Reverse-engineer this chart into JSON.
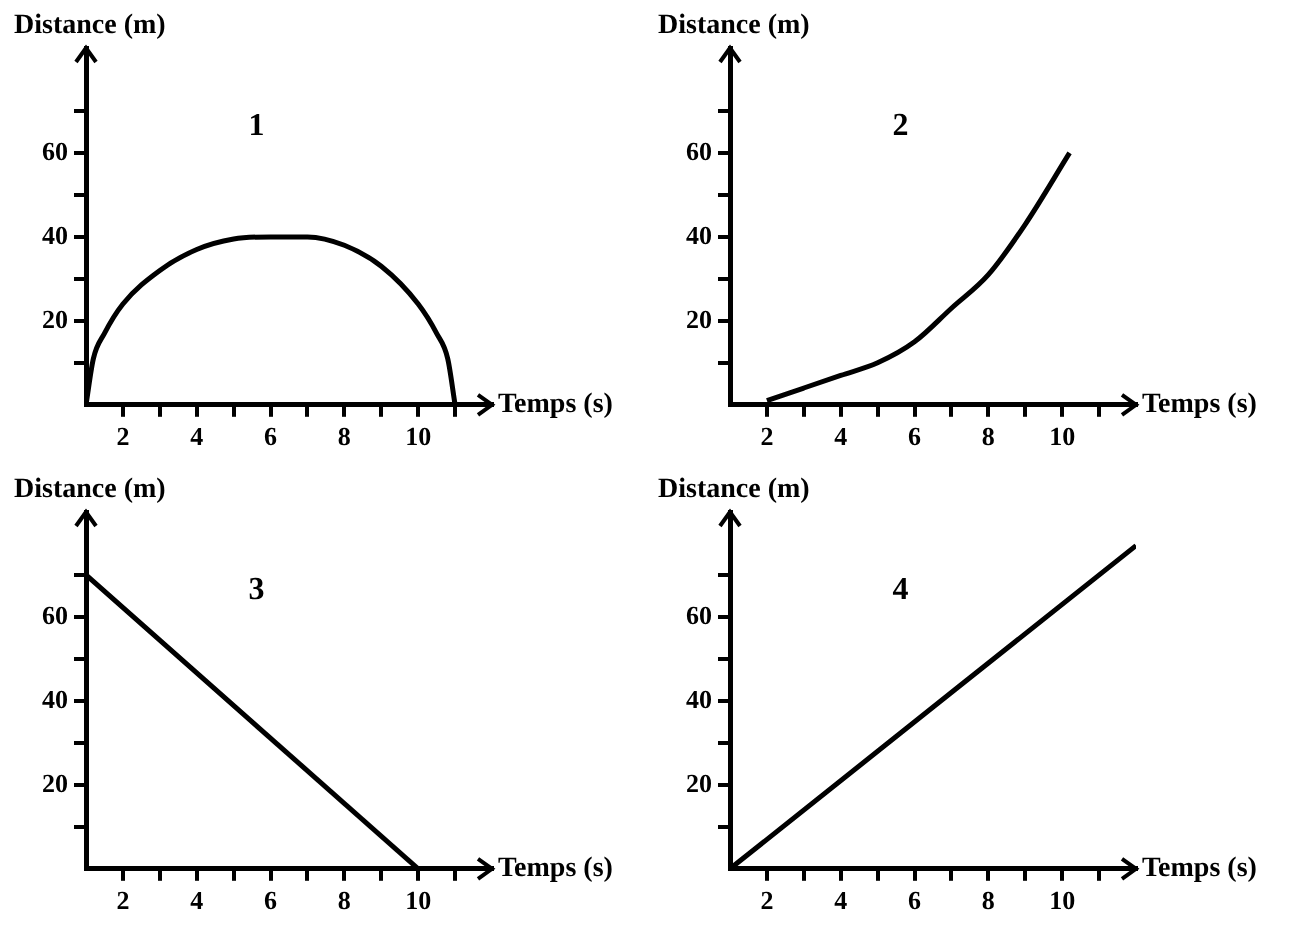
{
  "chart_data": [
    {
      "type": "line",
      "xlabel": "Temps (s)",
      "ylabel": "Distance (m)",
      "annotations": [
        "1"
      ],
      "xlim": [
        1,
        12
      ],
      "ylim": [
        0,
        85
      ],
      "xticks": [
        2,
        {
          "value": 3,
          "label": null
        },
        4,
        {
          "value": 5,
          "label": null
        },
        6,
        {
          "value": 7,
          "label": null
        },
        8,
        {
          "value": 9,
          "label": null
        },
        10,
        {
          "value": 11,
          "label": null
        }
      ],
      "yticks": [
        {
          "value": 10,
          "label": null
        },
        20,
        {
          "value": 30,
          "label": null
        },
        40,
        {
          "value": 50,
          "label": null
        },
        60,
        {
          "value": 70,
          "label": null
        }
      ],
      "series": [
        {
          "color": "#000000",
          "x": [
            1,
            1.2,
            1.5,
            2,
            3,
            4,
            5,
            6,
            7,
            8,
            9,
            10,
            10.5,
            10.8,
            11
          ],
          "values": [
            0,
            11,
            17,
            24,
            32,
            37,
            39.5,
            40,
            40,
            38,
            33,
            24,
            17,
            11,
            0
          ]
        }
      ],
      "grid": false,
      "legend": false,
      "marker": "none",
      "line_style": "solid"
    },
    {
      "type": "line",
      "xlabel": "Temps (s)",
      "ylabel": "Distance (m)",
      "annotations": [
        "2"
      ],
      "xlim": [
        1,
        12
      ],
      "ylim": [
        0,
        85
      ],
      "xticks": [
        2,
        {
          "value": 3,
          "label": null
        },
        4,
        {
          "value": 5,
          "label": null
        },
        6,
        {
          "value": 7,
          "label": null
        },
        8,
        {
          "value": 9,
          "label": null
        },
        10,
        {
          "value": 11,
          "label": null
        }
      ],
      "yticks": [
        {
          "value": 10,
          "label": null
        },
        20,
        {
          "value": 30,
          "label": null
        },
        40,
        {
          "value": 50,
          "label": null
        },
        60,
        {
          "value": 70,
          "label": null
        }
      ],
      "series": [
        {
          "color": "#000000",
          "x": [
            2,
            3,
            4,
            5,
            6,
            7,
            8,
            9,
            10.2
          ],
          "values": [
            1,
            4,
            7,
            10,
            15,
            23,
            31,
            43,
            60
          ]
        }
      ],
      "grid": false,
      "legend": false,
      "marker": "none",
      "line_style": "solid"
    },
    {
      "type": "line",
      "xlabel": "Temps (s)",
      "ylabel": "Distance (m)",
      "annotations": [
        "3"
      ],
      "xlim": [
        1,
        12
      ],
      "ylim": [
        0,
        85
      ],
      "xticks": [
        2,
        {
          "value": 3,
          "label": null
        },
        4,
        {
          "value": 5,
          "label": null
        },
        6,
        {
          "value": 7,
          "label": null
        },
        8,
        {
          "value": 9,
          "label": null
        },
        10,
        {
          "value": 11,
          "label": null
        }
      ],
      "yticks": [
        {
          "value": 10,
          "label": null
        },
        20,
        {
          "value": 30,
          "label": null
        },
        40,
        {
          "value": 50,
          "label": null
        },
        60,
        {
          "value": 70,
          "label": null
        }
      ],
      "series": [
        {
          "color": "#000000",
          "x": [
            1,
            10
          ],
          "values": [
            70,
            0
          ]
        }
      ],
      "grid": false,
      "legend": false,
      "marker": "none",
      "line_style": "solid"
    },
    {
      "type": "line",
      "xlabel": "Temps (s)",
      "ylabel": "Distance (m)",
      "annotations": [
        "4"
      ],
      "xlim": [
        1,
        12
      ],
      "ylim": [
        0,
        85
      ],
      "xticks": [
        2,
        {
          "value": 3,
          "label": null
        },
        4,
        {
          "value": 5,
          "label": null
        },
        6,
        {
          "value": 7,
          "label": null
        },
        8,
        {
          "value": 9,
          "label": null
        },
        10,
        {
          "value": 11,
          "label": null
        }
      ],
      "yticks": [
        {
          "value": 10,
          "label": null
        },
        20,
        {
          "value": 30,
          "label": null
        },
        40,
        {
          "value": 50,
          "label": null
        },
        60,
        {
          "value": 70,
          "label": null
        }
      ],
      "series": [
        {
          "color": "#000000",
          "x": [
            1,
            12
          ],
          "values": [
            0,
            77
          ]
        }
      ],
      "grid": false,
      "legend": false,
      "marker": "none",
      "line_style": "solid"
    }
  ]
}
